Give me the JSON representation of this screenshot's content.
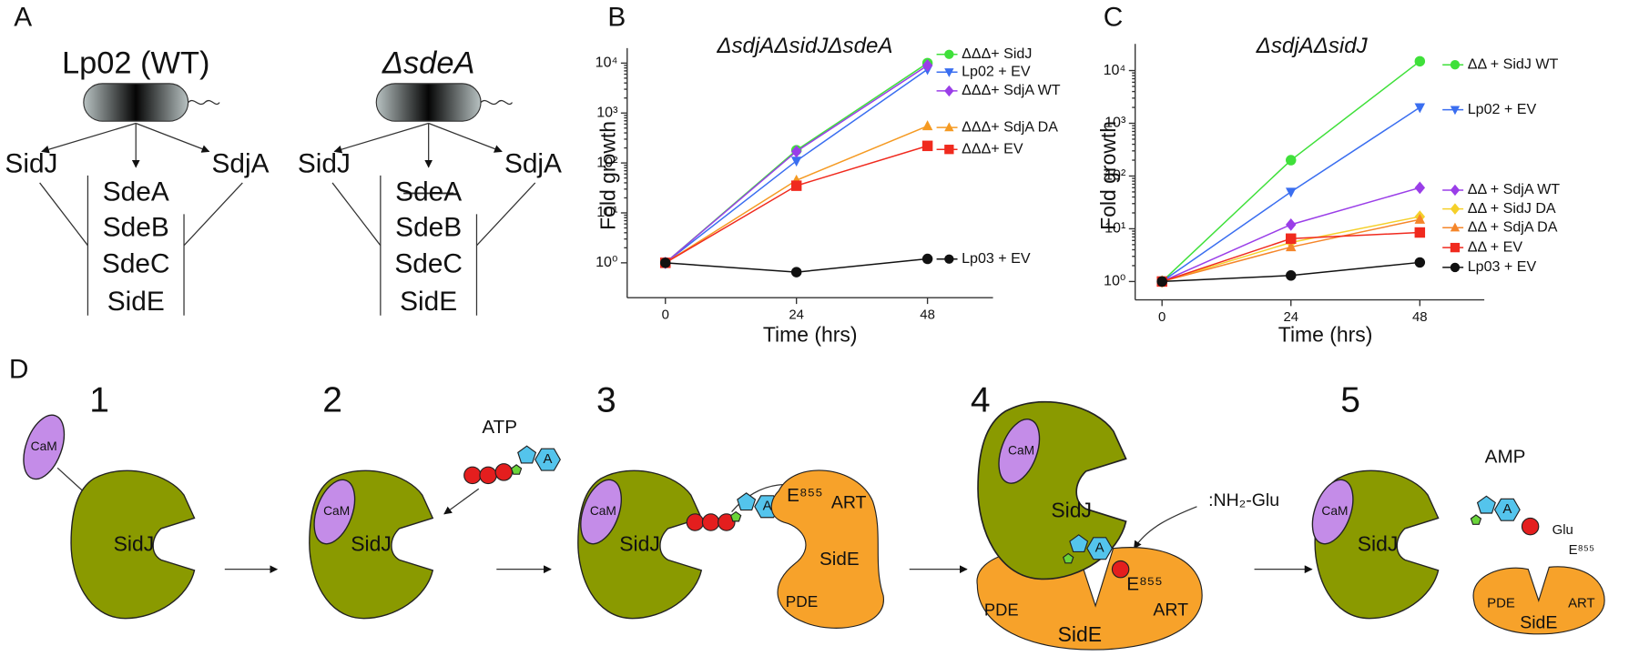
{
  "panel_labels": [
    "A",
    "B",
    "C",
    "D"
  ],
  "panel_a": {
    "strains": [
      {
        "name": "Lp02 (WT)",
        "left": "SidJ",
        "right": "SdjA",
        "effectors": [
          "SdeA",
          "SdeB",
          "SdeC",
          "SidE"
        ]
      },
      {
        "name": "ΔsdeA",
        "left": "SidJ",
        "right": "SdjA",
        "effectors": [
          "SdeA",
          "SdeB",
          "SdeC",
          "SidE"
        ]
      }
    ]
  },
  "chart_data": [
    {
      "type": "line",
      "title": "ΔsdjAΔsidJΔsdeA",
      "x_label": "Time (hrs)",
      "y_label": "Fold growth",
      "x": [
        0,
        24,
        48
      ],
      "xlim": [
        -7,
        60
      ],
      "xticks": [
        0,
        24,
        48
      ],
      "ylim": [
        0.2,
        20000
      ],
      "y_log": true,
      "yticks": [
        {
          "value": 1,
          "label": "10⁰"
        },
        {
          "value": 10,
          "label": "10¹"
        },
        {
          "value": 100,
          "label": "10²"
        },
        {
          "value": 1000,
          "label": "10³"
        },
        {
          "value": 10000,
          "label": "10⁴"
        }
      ],
      "series": [
        {
          "name": "ΔΔΔ+ SidJ",
          "color": "#3fe03a",
          "marker": "circle",
          "values": [
            1,
            180,
            10000
          ]
        },
        {
          "name": "Lp02 + EV",
          "color": "#3a6ef0",
          "marker": "tri-down",
          "values": [
            1,
            110,
            7500
          ]
        },
        {
          "name": "ΔΔΔ+ SdjA WT",
          "color": "#9a3ee8",
          "marker": "diamond",
          "values": [
            1,
            170,
            9000
          ]
        },
        {
          "name": "ΔΔΔ+ SdjA DA",
          "color": "#f59a22",
          "marker": "tri-up",
          "values": [
            1,
            45,
            550
          ]
        },
        {
          "name": "ΔΔΔ+ EV",
          "color": "#f02a1e",
          "marker": "square",
          "values": [
            1,
            35,
            220
          ]
        },
        {
          "name": "Lp03 + EV",
          "color": "#111111",
          "marker": "circle",
          "values": [
            1,
            0.65,
            1.2
          ]
        }
      ]
    },
    {
      "type": "line",
      "title": "ΔsdjAΔsidJ",
      "x_label": "Time (hrs)",
      "y_label": "Fold growth",
      "x": [
        0,
        24,
        48
      ],
      "xlim": [
        -5,
        60
      ],
      "xticks": [
        0,
        24,
        48
      ],
      "ylim": [
        0.45,
        32000
      ],
      "y_log": true,
      "yticks": [
        {
          "value": 1,
          "label": "10⁰"
        },
        {
          "value": 10,
          "label": "10¹"
        },
        {
          "value": 100,
          "label": "10²"
        },
        {
          "value": 1000,
          "label": "10³"
        },
        {
          "value": 10000,
          "label": "10⁴"
        }
      ],
      "series": [
        {
          "name": "ΔΔ + SidJ WT",
          "color": "#3fe03a",
          "marker": "circle",
          "values": [
            1,
            200,
            15000
          ]
        },
        {
          "name": "Lp02 + EV",
          "color": "#3a6ef0",
          "marker": "tri-down",
          "values": [
            1,
            50,
            2000
          ]
        },
        {
          "name": "ΔΔ + SdjA WT",
          "color": "#9a3ee8",
          "marker": "diamond",
          "values": [
            1,
            12,
            60
          ]
        },
        {
          "name": "ΔΔ + SidJ DA",
          "color": "#f5d02a",
          "marker": "diamond",
          "values": [
            1,
            5.5,
            17
          ]
        },
        {
          "name": "ΔΔ + SdjA DA",
          "color": "#f5862a",
          "marker": "tri-up",
          "values": [
            1,
            4.5,
            15
          ]
        },
        {
          "name": "ΔΔ + EV",
          "color": "#f02a1e",
          "marker": "square",
          "values": [
            1,
            6.5,
            8.5
          ]
        },
        {
          "name": "Lp03 + EV",
          "color": "#111111",
          "marker": "circle",
          "values": [
            1,
            1.3,
            2.3
          ]
        }
      ]
    }
  ],
  "panel_d": {
    "steps": [
      {
        "number": "1",
        "cam": "CaM",
        "sidj": "SidJ"
      },
      {
        "number": "2",
        "cam": "CaM",
        "sidj": "SidJ",
        "atp": "ATP",
        "adenine": "A"
      },
      {
        "number": "3",
        "cam": "CaM",
        "sidj": "SidJ",
        "adenine": "A",
        "glu_site": "E⁸⁵⁵",
        "art": "ART",
        "side": "SidE",
        "pde": "PDE"
      },
      {
        "number": "4",
        "cam": "CaM",
        "sidj": "SidJ",
        "adenine": "A",
        "glu_site": "E⁸⁵⁵",
        "art": "ART",
        "side": "SidE",
        "pde": "PDE",
        "nucleophile": ":NH₂-Glu"
      },
      {
        "number": "5",
        "cam": "CaM",
        "sidj": "SidJ",
        "amp": "AMP",
        "adenine": "A",
        "glu": "Glu",
        "glu_site": "E⁸⁵⁵",
        "art": "ART",
        "side": "SidE",
        "pde": "PDE"
      }
    ]
  }
}
